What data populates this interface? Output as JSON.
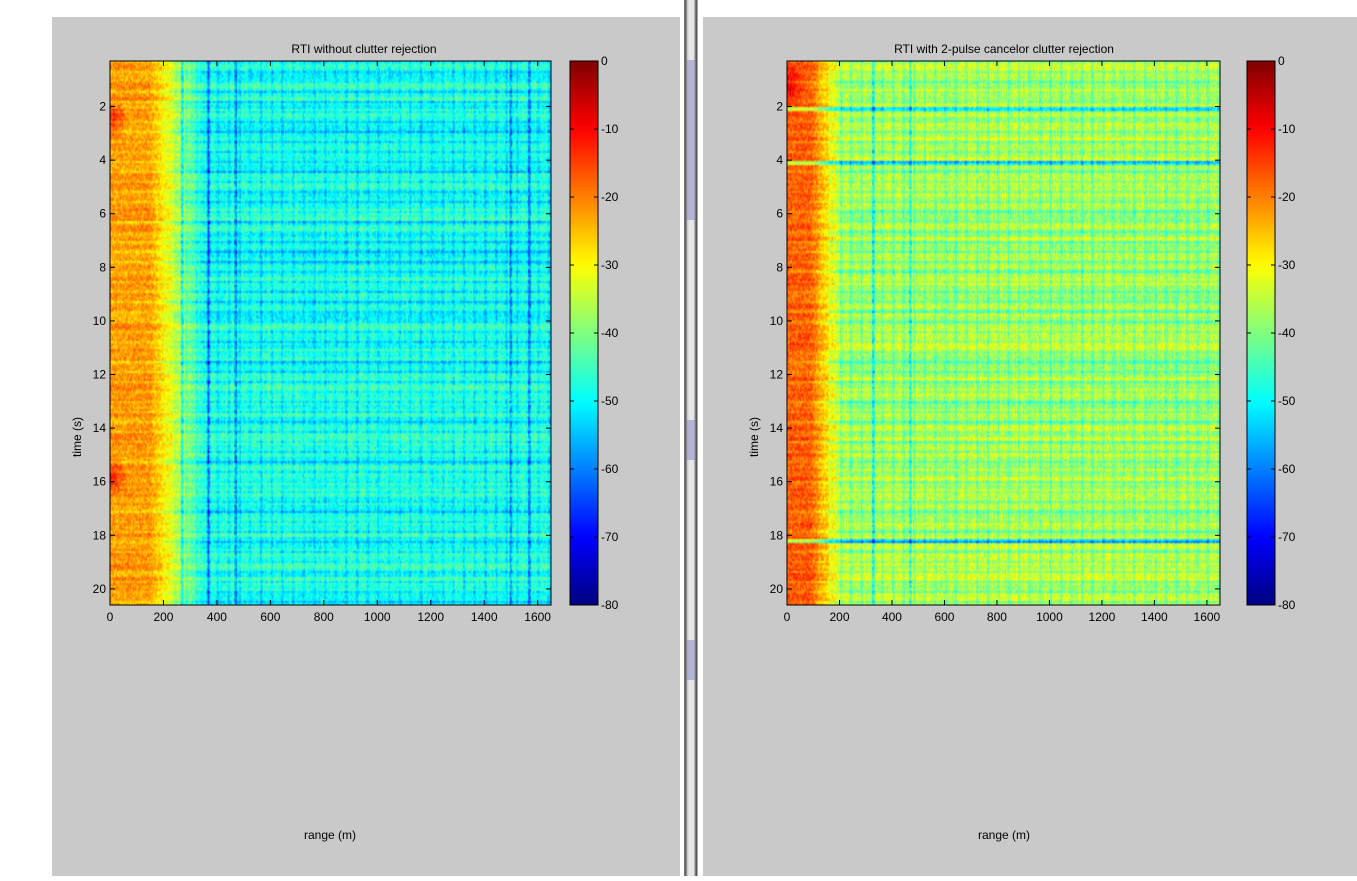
{
  "chart_data": [
    {
      "type": "heatmap",
      "title": "RTI without clutter rejection",
      "xlabel": "range (m)",
      "ylabel": "time (s)",
      "xlim": [
        0,
        1650
      ],
      "ylim": [
        0.3,
        20.6
      ],
      "y_reversed": true,
      "xticks": [
        0,
        200,
        400,
        600,
        800,
        1000,
        1200,
        1400,
        1600
      ],
      "yticks": [
        2,
        4,
        6,
        8,
        10,
        12,
        14,
        16,
        18,
        20
      ],
      "colorbar": {
        "colormap": "jet",
        "range": [
          -80,
          0
        ],
        "ticks": [
          0,
          -10,
          -20,
          -30,
          -40,
          -50,
          -60,
          -70,
          -80
        ]
      },
      "pattern": {
        "near_range_m": 250,
        "near_range_dB": -22,
        "far_range_dB": -47,
        "dark_columns_m": [
          270,
          370,
          470,
          1500,
          1570
        ],
        "hot_spots_s": [
          2.5,
          15.8
        ]
      }
    },
    {
      "type": "heatmap",
      "title": "RTI with 2-pulse cancelor clutter rejection",
      "xlabel": "range (m)",
      "ylabel": "time (s)",
      "xlim": [
        0,
        1650
      ],
      "ylim": [
        0.3,
        20.6
      ],
      "y_reversed": true,
      "xticks": [
        0,
        200,
        400,
        600,
        800,
        1000,
        1200,
        1400,
        1600
      ],
      "yticks": [
        2,
        4,
        6,
        8,
        10,
        12,
        14,
        16,
        18,
        20
      ],
      "colorbar": {
        "colormap": "jet",
        "range": [
          -80,
          0
        ],
        "ticks": [
          0,
          -10,
          -20,
          -30,
          -40,
          -50,
          -60,
          -70,
          -80
        ]
      },
      "pattern": {
        "near_range_m": 150,
        "near_range_dB": -17,
        "far_range_dB": -36,
        "dark_columns_m": [
          330,
          470
        ],
        "hot_spots_s": [
          1.2
        ],
        "dark_rows_s": [
          2.1,
          4.1,
          18.2
        ]
      }
    }
  ]
}
